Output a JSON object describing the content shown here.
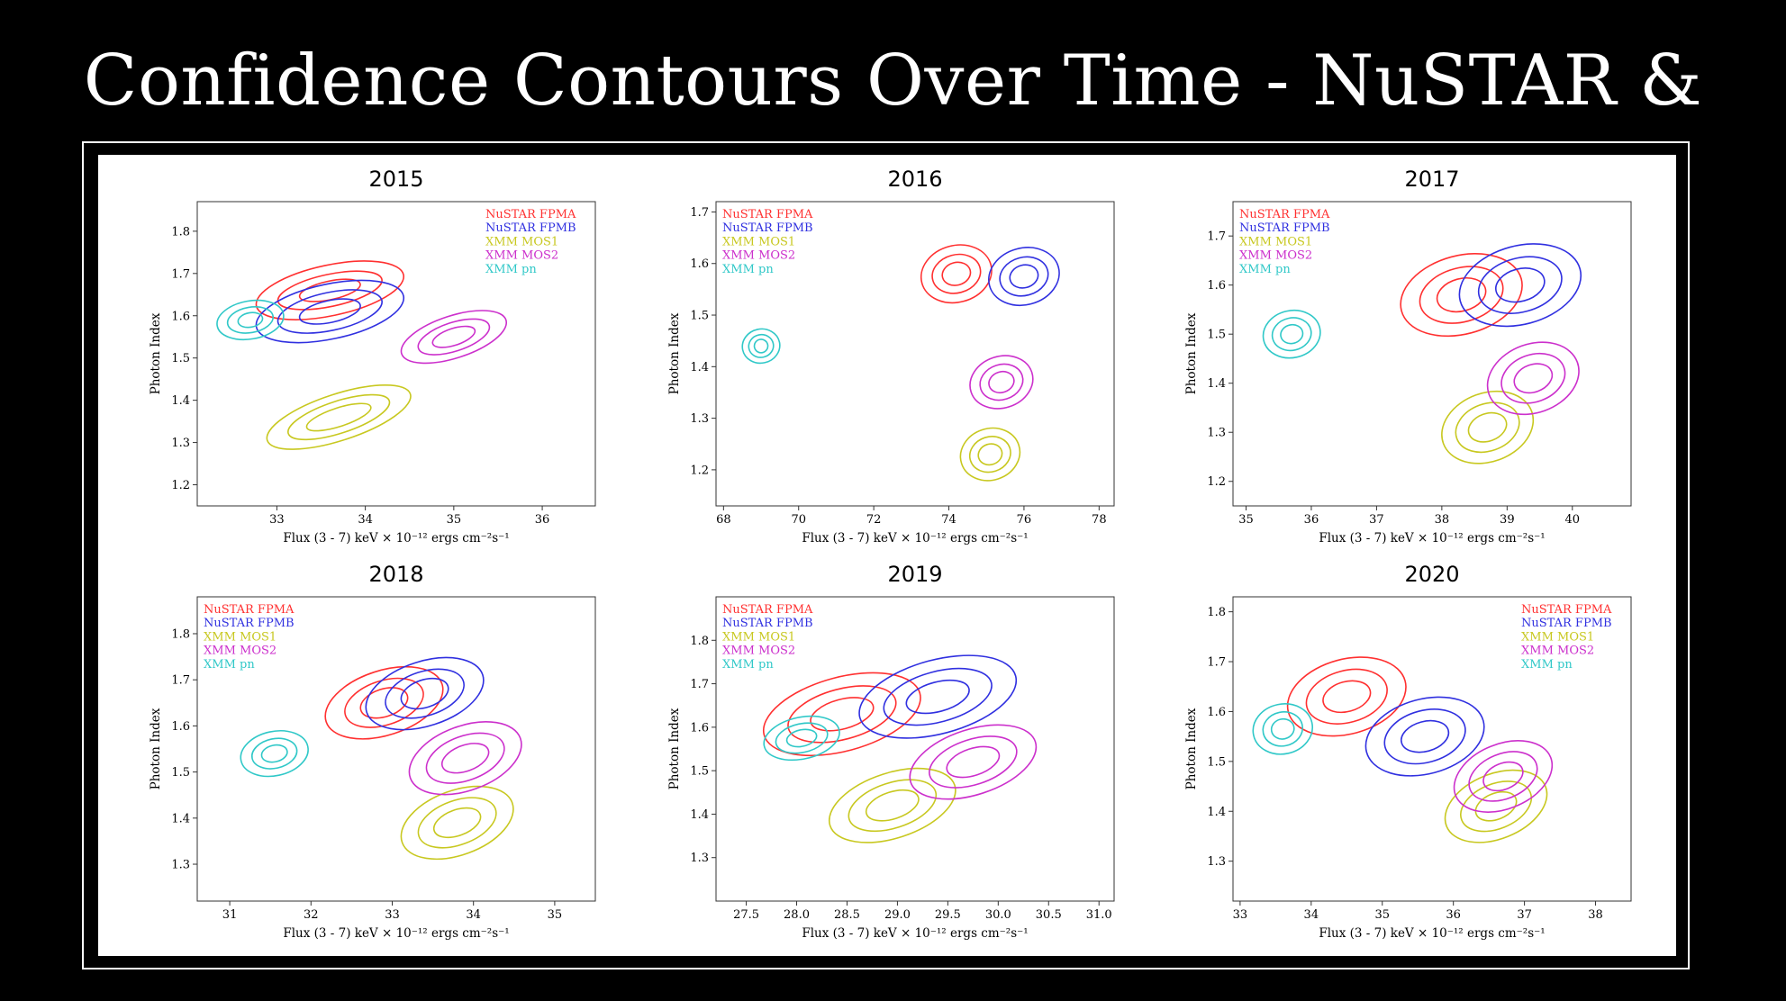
{
  "slide": {
    "title": "Confidence Contours Over Time - NuSTAR & XMM"
  },
  "colors": {
    "NuSTAR FPMA": "#ff3030",
    "NuSTAR FPMB": "#3030e0",
    "XMM MOS1": "#c8c820",
    "XMM MOS2": "#cc30cc",
    "XMM pn": "#30c8c8"
  },
  "chart_data": [
    {
      "type": "scatter",
      "title": "2015",
      "xlabel": "Flux (3 - 7) keV × 10⁻¹² ergs cm⁻²s⁻¹",
      "ylabel": "Photon Index",
      "xlim": [
        32.1,
        36.6
      ],
      "ylim": [
        1.15,
        1.87
      ],
      "xticks": [
        33,
        34,
        35,
        36
      ],
      "xtick_labels": [
        "33",
        "34",
        "35",
        "36"
      ],
      "yticks": [
        1.2,
        1.3,
        1.4,
        1.5,
        1.6,
        1.7,
        1.8
      ],
      "ytick_labels": [
        "1.2",
        "1.3",
        "1.4",
        "1.5",
        "1.6",
        "1.7",
        "1.8"
      ],
      "legend": {
        "position": "top-right",
        "entries": [
          "NuSTAR FPMA",
          "NuSTAR FPMB",
          "XMM MOS1",
          "XMM MOS2",
          "XMM pn"
        ]
      },
      "series": [
        {
          "name": "NuSTAR FPMA",
          "center": [
            33.6,
            1.66
          ],
          "semi_axes": [
            [
              0.85,
              0.06
            ],
            [
              0.6,
              0.038
            ],
            [
              0.35,
              0.022
            ]
          ],
          "angle_deg": -12
        },
        {
          "name": "NuSTAR FPMB",
          "center": [
            33.6,
            1.61
          ],
          "semi_axes": [
            [
              0.85,
              0.065
            ],
            [
              0.6,
              0.045
            ],
            [
              0.35,
              0.026
            ]
          ],
          "angle_deg": -12
        },
        {
          "name": "XMM MOS1",
          "center": [
            33.7,
            1.36
          ],
          "semi_axes": [
            [
              0.85,
              0.055
            ],
            [
              0.6,
              0.038
            ],
            [
              0.38,
              0.022
            ]
          ],
          "angle_deg": -18
        },
        {
          "name": "XMM MOS2",
          "center": [
            35.0,
            1.55
          ],
          "semi_axes": [
            [
              0.62,
              0.05
            ],
            [
              0.42,
              0.034
            ],
            [
              0.25,
              0.02
            ]
          ],
          "angle_deg": -18
        },
        {
          "name": "XMM pn",
          "center": [
            32.7,
            1.59
          ],
          "semi_axes": [
            [
              0.38,
              0.045
            ],
            [
              0.26,
              0.03
            ],
            [
              0.14,
              0.017
            ]
          ],
          "angle_deg": -10
        }
      ]
    },
    {
      "type": "scatter",
      "title": "2016",
      "xlabel": "Flux (3 - 7) keV × 10⁻¹² ergs cm⁻²s⁻¹",
      "ylabel": "Photon Index",
      "xlim": [
        67.8,
        78.4
      ],
      "ylim": [
        1.13,
        1.72
      ],
      "xticks": [
        68,
        70,
        72,
        74,
        76,
        78
      ],
      "xtick_labels": [
        "68",
        "70",
        "72",
        "74",
        "76",
        "78"
      ],
      "yticks": [
        1.2,
        1.3,
        1.4,
        1.5,
        1.6,
        1.7
      ],
      "ytick_labels": [
        "1.2",
        "1.3",
        "1.4",
        "1.5",
        "1.6",
        "1.7"
      ],
      "legend": {
        "position": "top-left",
        "entries": [
          "NuSTAR FPMA",
          "NuSTAR FPMB",
          "XMM MOS1",
          "XMM MOS2",
          "XMM pn"
        ]
      },
      "series": [
        {
          "name": "NuSTAR FPMA",
          "center": [
            74.2,
            1.58
          ],
          "semi_axes": [
            [
              0.95,
              0.055
            ],
            [
              0.65,
              0.037
            ],
            [
              0.38,
              0.022
            ]
          ],
          "angle_deg": -15
        },
        {
          "name": "NuSTAR FPMB",
          "center": [
            76.0,
            1.575
          ],
          "semi_axes": [
            [
              0.95,
              0.055
            ],
            [
              0.65,
              0.037
            ],
            [
              0.38,
              0.022
            ]
          ],
          "angle_deg": -15
        },
        {
          "name": "XMM MOS1",
          "center": [
            75.1,
            1.23
          ],
          "semi_axes": [
            [
              0.8,
              0.05
            ],
            [
              0.55,
              0.034
            ],
            [
              0.32,
              0.02
            ]
          ],
          "angle_deg": -18
        },
        {
          "name": "XMM MOS2",
          "center": [
            75.4,
            1.37
          ],
          "semi_axes": [
            [
              0.85,
              0.05
            ],
            [
              0.58,
              0.034
            ],
            [
              0.34,
              0.02
            ]
          ],
          "angle_deg": -18
        },
        {
          "name": "XMM pn",
          "center": [
            69.0,
            1.44
          ],
          "semi_axes": [
            [
              0.5,
              0.033
            ],
            [
              0.33,
              0.022
            ],
            [
              0.18,
              0.013
            ]
          ],
          "angle_deg": -12
        }
      ]
    },
    {
      "type": "scatter",
      "title": "2017",
      "xlabel": "Flux (3 - 7) keV × 10⁻¹² ergs cm⁻²s⁻¹",
      "ylabel": "Photon Index",
      "xlim": [
        34.8,
        40.9
      ],
      "ylim": [
        1.15,
        1.77
      ],
      "xticks": [
        35,
        36,
        37,
        38,
        39,
        40
      ],
      "xtick_labels": [
        "35",
        "36",
        "37",
        "38",
        "39",
        "40"
      ],
      "yticks": [
        1.2,
        1.3,
        1.4,
        1.5,
        1.6,
        1.7
      ],
      "ytick_labels": [
        "1.2",
        "1.3",
        "1.4",
        "1.5",
        "1.6",
        "1.7"
      ],
      "legend": {
        "position": "top-left",
        "entries": [
          "NuSTAR FPMA",
          "NuSTAR FPMB",
          "XMM MOS1",
          "XMM MOS2",
          "XMM pn"
        ]
      },
      "series": [
        {
          "name": "NuSTAR FPMA",
          "center": [
            38.3,
            1.58
          ],
          "semi_axes": [
            [
              0.95,
              0.08
            ],
            [
              0.65,
              0.055
            ],
            [
              0.38,
              0.033
            ]
          ],
          "angle_deg": -15
        },
        {
          "name": "NuSTAR FPMB",
          "center": [
            39.2,
            1.6
          ],
          "semi_axes": [
            [
              0.95,
              0.08
            ],
            [
              0.65,
              0.055
            ],
            [
              0.38,
              0.033
            ]
          ],
          "angle_deg": -15
        },
        {
          "name": "XMM MOS1",
          "center": [
            38.7,
            1.31
          ],
          "semi_axes": [
            [
              0.72,
              0.07
            ],
            [
              0.5,
              0.048
            ],
            [
              0.3,
              0.028
            ]
          ],
          "angle_deg": -20
        },
        {
          "name": "XMM MOS2",
          "center": [
            39.4,
            1.41
          ],
          "semi_axes": [
            [
              0.72,
              0.07
            ],
            [
              0.5,
              0.048
            ],
            [
              0.3,
              0.028
            ]
          ],
          "angle_deg": -20
        },
        {
          "name": "XMM pn",
          "center": [
            35.7,
            1.5
          ],
          "semi_axes": [
            [
              0.44,
              0.048
            ],
            [
              0.3,
              0.033
            ],
            [
              0.17,
              0.019
            ]
          ],
          "angle_deg": -12
        }
      ]
    },
    {
      "type": "scatter",
      "title": "2018",
      "xlabel": "Flux (3 - 7) keV × 10⁻¹² ergs cm⁻²s⁻¹",
      "ylabel": "Photon Index",
      "xlim": [
        30.6,
        35.5
      ],
      "ylim": [
        1.22,
        1.88
      ],
      "xticks": [
        31,
        32,
        33,
        34,
        35
      ],
      "xtick_labels": [
        "31",
        "32",
        "33",
        "34",
        "35"
      ],
      "yticks": [
        1.3,
        1.4,
        1.5,
        1.6,
        1.7,
        1.8
      ],
      "ytick_labels": [
        "1.3",
        "1.4",
        "1.5",
        "1.6",
        "1.7",
        "1.8"
      ],
      "legend": {
        "position": "top-left",
        "entries": [
          "NuSTAR FPMA",
          "NuSTAR FPMB",
          "XMM MOS1",
          "XMM MOS2",
          "XMM pn"
        ]
      },
      "series": [
        {
          "name": "NuSTAR FPMA",
          "center": [
            32.9,
            1.65
          ],
          "semi_axes": [
            [
              0.75,
              0.07
            ],
            [
              0.5,
              0.048
            ],
            [
              0.3,
              0.03
            ]
          ],
          "angle_deg": -18
        },
        {
          "name": "NuSTAR FPMB",
          "center": [
            33.4,
            1.67
          ],
          "semi_axes": [
            [
              0.75,
              0.07
            ],
            [
              0.5,
              0.048
            ],
            [
              0.3,
              0.03
            ]
          ],
          "angle_deg": -18
        },
        {
          "name": "XMM MOS1",
          "center": [
            33.8,
            1.39
          ],
          "semi_axes": [
            [
              0.72,
              0.07
            ],
            [
              0.5,
              0.048
            ],
            [
              0.3,
              0.028
            ]
          ],
          "angle_deg": -20
        },
        {
          "name": "XMM MOS2",
          "center": [
            33.9,
            1.53
          ],
          "semi_axes": [
            [
              0.72,
              0.07
            ],
            [
              0.5,
              0.048
            ],
            [
              0.3,
              0.028
            ]
          ],
          "angle_deg": -20
        },
        {
          "name": "XMM pn",
          "center": [
            31.55,
            1.54
          ],
          "semi_axes": [
            [
              0.42,
              0.048
            ],
            [
              0.28,
              0.032
            ],
            [
              0.16,
              0.018
            ]
          ],
          "angle_deg": -12
        }
      ]
    },
    {
      "type": "scatter",
      "title": "2019",
      "xlabel": "Flux (3 - 7) keV × 10⁻¹² ergs cm⁻²s⁻¹",
      "ylabel": "Photon Index",
      "xlim": [
        27.2,
        31.15
      ],
      "ylim": [
        1.2,
        1.9
      ],
      "xticks": [
        27.5,
        28.0,
        28.5,
        29.0,
        29.5,
        30.0,
        30.5,
        31.0
      ],
      "xtick_labels": [
        "27.5",
        "28.0",
        "28.5",
        "29.0",
        "29.5",
        "30.0",
        "30.5",
        "31.0"
      ],
      "yticks": [
        1.3,
        1.4,
        1.5,
        1.6,
        1.7,
        1.8
      ],
      "ytick_labels": [
        "1.3",
        "1.4",
        "1.5",
        "1.6",
        "1.7",
        "1.8"
      ],
      "legend": {
        "position": "top-left",
        "entries": [
          "NuSTAR FPMA",
          "NuSTAR FPMB",
          "XMM MOS1",
          "XMM MOS2",
          "XMM pn"
        ]
      },
      "series": [
        {
          "name": "NuSTAR FPMA",
          "center": [
            28.45,
            1.63
          ],
          "semi_axes": [
            [
              0.8,
              0.085
            ],
            [
              0.55,
              0.058
            ],
            [
              0.32,
              0.034
            ]
          ],
          "angle_deg": -15
        },
        {
          "name": "NuSTAR FPMB",
          "center": [
            29.4,
            1.67
          ],
          "semi_axes": [
            [
              0.8,
              0.085
            ],
            [
              0.55,
              0.058
            ],
            [
              0.32,
              0.034
            ]
          ],
          "angle_deg": -15
        },
        {
          "name": "XMM MOS1",
          "center": [
            28.95,
            1.42
          ],
          "semi_axes": [
            [
              0.65,
              0.075
            ],
            [
              0.45,
              0.052
            ],
            [
              0.27,
              0.031
            ]
          ],
          "angle_deg": -18
        },
        {
          "name": "XMM MOS2",
          "center": [
            29.75,
            1.52
          ],
          "semi_axes": [
            [
              0.65,
              0.075
            ],
            [
              0.45,
              0.052
            ],
            [
              0.27,
              0.031
            ]
          ],
          "angle_deg": -18
        },
        {
          "name": "XMM pn",
          "center": [
            28.05,
            1.575
          ],
          "semi_axes": [
            [
              0.38,
              0.048
            ],
            [
              0.26,
              0.033
            ],
            [
              0.15,
              0.019
            ]
          ],
          "angle_deg": -12
        }
      ]
    },
    {
      "type": "scatter",
      "title": "2020",
      "xlabel": "Flux (3 - 7) keV × 10⁻¹² ergs cm⁻²s⁻¹",
      "ylabel": "Photon Index",
      "xlim": [
        32.9,
        38.5
      ],
      "ylim": [
        1.22,
        1.83
      ],
      "xticks": [
        33,
        34,
        35,
        36,
        37,
        38
      ],
      "xtick_labels": [
        "33",
        "34",
        "35",
        "36",
        "37",
        "38"
      ],
      "yticks": [
        1.3,
        1.4,
        1.5,
        1.6,
        1.7,
        1.8
      ],
      "ytick_labels": [
        "1.3",
        "1.4",
        "1.5",
        "1.6",
        "1.7",
        "1.8"
      ],
      "legend": {
        "position": "top-right",
        "entries": [
          "NuSTAR FPMA",
          "NuSTAR FPMB",
          "XMM MOS1",
          "XMM MOS2",
          "XMM pn"
        ]
      },
      "series": [
        {
          "name": "NuSTAR FPMA",
          "center": [
            34.5,
            1.63
          ],
          "semi_axes": [
            [
              0.85,
              0.075
            ],
            [
              0.58,
              0.052
            ],
            [
              0.34,
              0.03
            ]
          ],
          "angle_deg": -15
        },
        {
          "name": "NuSTAR FPMB",
          "center": [
            35.6,
            1.55
          ],
          "semi_axes": [
            [
              0.85,
              0.075
            ],
            [
              0.58,
              0.052
            ],
            [
              0.34,
              0.03
            ]
          ],
          "angle_deg": -15
        },
        {
          "name": "XMM MOS1",
          "center": [
            36.6,
            1.41
          ],
          "semi_axes": [
            [
              0.75,
              0.065
            ],
            [
              0.52,
              0.045
            ],
            [
              0.3,
              0.026
            ]
          ],
          "angle_deg": -22
        },
        {
          "name": "XMM MOS2",
          "center": [
            36.7,
            1.47
          ],
          "semi_axes": [
            [
              0.72,
              0.065
            ],
            [
              0.5,
              0.045
            ],
            [
              0.29,
              0.026
            ]
          ],
          "angle_deg": -22
        },
        {
          "name": "XMM pn",
          "center": [
            33.6,
            1.565
          ],
          "semi_axes": [
            [
              0.42,
              0.05
            ],
            [
              0.28,
              0.034
            ],
            [
              0.16,
              0.02
            ]
          ],
          "angle_deg": -12
        }
      ]
    }
  ]
}
